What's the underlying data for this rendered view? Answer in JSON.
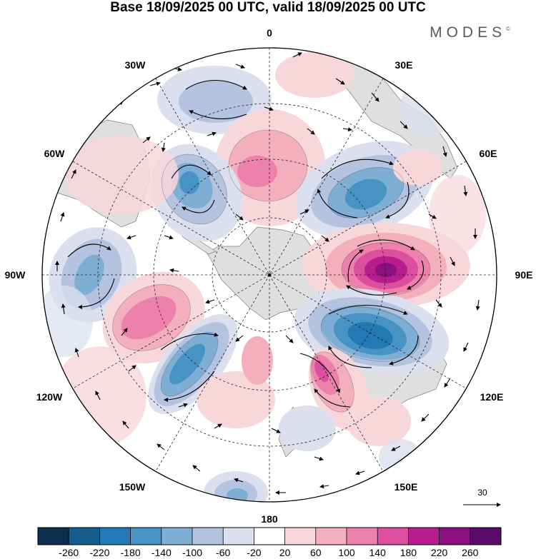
{
  "title": "Base 18/09/2025 00 UTC, valid 18/09/2025 00 UTC",
  "brand": {
    "name": "MODES",
    "mark": "©"
  },
  "map": {
    "projection": "south-polar-stereographic",
    "meridian_labels": {
      "m0": "0",
      "m30e": "30E",
      "m60e": "60E",
      "m90e": "90E",
      "m120e": "120E",
      "m150e": "150E",
      "m180": "180",
      "m150w": "150W",
      "m120w": "120W",
      "m90w": "90W",
      "m60w": "60W",
      "m30w": "30W"
    },
    "vector_reference": {
      "value": "30",
      "icon": "arrow-right-icon"
    }
  },
  "colorbar": {
    "ticks": [
      "-260",
      "-220",
      "-180",
      "-140",
      "-100",
      "-60",
      "-20",
      "20",
      "60",
      "100",
      "140",
      "180",
      "220",
      "260"
    ],
    "colors": [
      "#0d2f4f",
      "#155d8c",
      "#2379b3",
      "#4793c4",
      "#7faed4",
      "#b3c3e0",
      "#dcdfee",
      "#ffffff",
      "#f8d7db",
      "#f3afbe",
      "#ec82ab",
      "#dc4e9e",
      "#b71d8d",
      "#8a0f80",
      "#5a0a6a"
    ]
  },
  "anomaly_cells": [
    {
      "id": "cell-30w-negative",
      "sign": "negative",
      "peak_class": 2
    },
    {
      "id": "cell-0-positive",
      "sign": "positive",
      "peak_class": 3
    },
    {
      "id": "cell-45w-negative",
      "sign": "negative",
      "peak_class": 4
    },
    {
      "id": "cell-45e-negative",
      "sign": "negative",
      "peak_class": 4
    },
    {
      "id": "cell-90e-positive",
      "sign": "positive",
      "peak_class": 6
    },
    {
      "id": "cell-110e-negative",
      "sign": "negative",
      "peak_class": 5
    },
    {
      "id": "cell-140e-positive",
      "sign": "positive",
      "peak_class": 4
    },
    {
      "id": "cell-90w-negative",
      "sign": "negative",
      "peak_class": 3
    },
    {
      "id": "cell-115w-positive",
      "sign": "positive",
      "peak_class": 4
    },
    {
      "id": "cell-135w-negative",
      "sign": "negative",
      "peak_class": 4
    },
    {
      "id": "cell-60w-positive",
      "sign": "positive",
      "peak_class": 1
    },
    {
      "id": "cell-180-negative",
      "sign": "negative",
      "peak_class": 3
    },
    {
      "id": "cell-175e-negative",
      "sign": "negative",
      "peak_class": 1
    },
    {
      "id": "cell-160w-positive",
      "sign": "positive",
      "peak_class": 2
    },
    {
      "id": "cell-165e-positive",
      "sign": "positive",
      "peak_class": 2
    }
  ]
}
